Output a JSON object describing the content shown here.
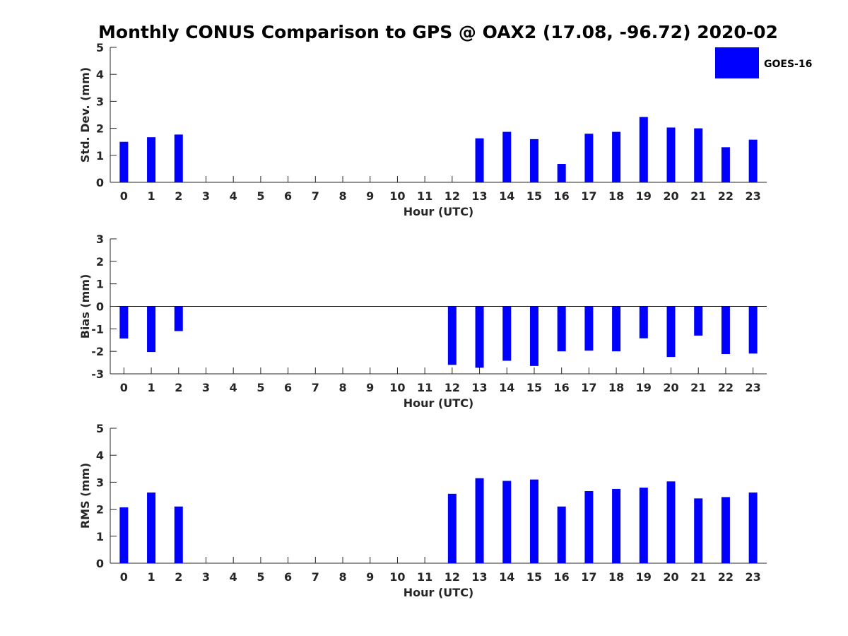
{
  "chart_data": {
    "type": "bar",
    "title": "Monthly CONUS Comparison to GPS @ OAX2 (17.08, -96.72) 2020-02",
    "legend": {
      "label": "GOES-16",
      "color": "#0000ff",
      "position": "top-right"
    },
    "categories": [
      "0",
      "1",
      "2",
      "3",
      "4",
      "5",
      "6",
      "7",
      "8",
      "9",
      "10",
      "11",
      "12",
      "13",
      "14",
      "15",
      "16",
      "17",
      "18",
      "19",
      "20",
      "21",
      "22",
      "23"
    ],
    "panels": [
      {
        "name": "std-dev",
        "xlabel": "Hour (UTC)",
        "ylabel": "Std. Dev. (mm)",
        "ylim": [
          0,
          5
        ],
        "yticks": [
          0,
          1,
          2,
          3,
          4,
          5
        ],
        "series": [
          {
            "name": "GOES-16",
            "values": [
              1.5,
              1.67,
              1.77,
              null,
              null,
              null,
              null,
              null,
              null,
              null,
              null,
              null,
              null,
              1.63,
              1.87,
              1.6,
              0.68,
              1.8,
              1.87,
              2.42,
              2.03,
              2.0,
              1.3,
              1.58
            ]
          }
        ]
      },
      {
        "name": "bias",
        "xlabel": "Hour (UTC)",
        "ylabel": "Bias (mm)",
        "ylim": [
          -3,
          3
        ],
        "yticks": [
          -3,
          -2,
          -1,
          0,
          1,
          2,
          3
        ],
        "series": [
          {
            "name": "GOES-16",
            "values": [
              -1.43,
              -2.03,
              -1.1,
              null,
              null,
              null,
              null,
              null,
              null,
              null,
              null,
              null,
              -2.6,
              -2.73,
              -2.42,
              -2.65,
              -2.0,
              -1.97,
              -2.0,
              -1.42,
              -2.25,
              -1.3,
              -2.12,
              -2.1
            ]
          }
        ]
      },
      {
        "name": "rms",
        "xlabel": "Hour (UTC)",
        "ylabel": "RMS (mm)",
        "ylim": [
          0,
          5
        ],
        "yticks": [
          0,
          1,
          2,
          3,
          4,
          5
        ],
        "series": [
          {
            "name": "GOES-16",
            "values": [
              2.07,
              2.62,
              2.1,
              null,
              null,
              null,
              null,
              null,
              null,
              null,
              null,
              null,
              2.57,
              3.15,
              3.05,
              3.1,
              2.1,
              2.67,
              2.75,
              2.8,
              3.03,
              2.4,
              2.45,
              2.62
            ]
          }
        ]
      }
    ]
  }
}
